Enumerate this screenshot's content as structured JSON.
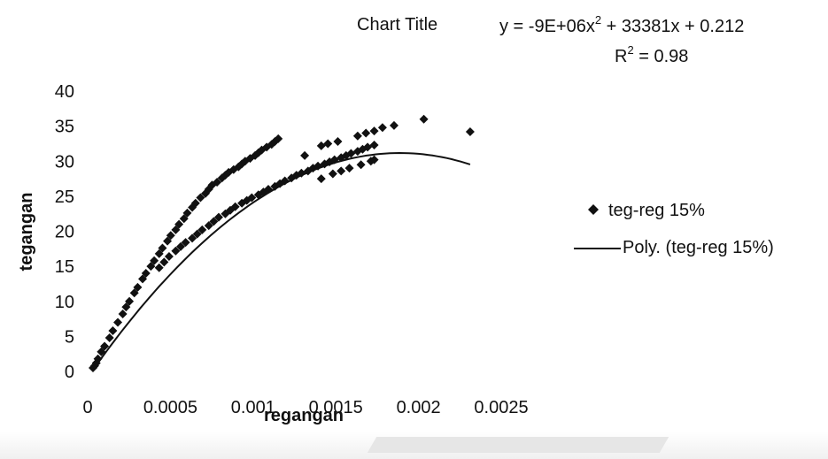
{
  "chart_data": {
    "type": "scatter",
    "title": "Chart Title",
    "equation": "y = -9E+06x",
    "equation_exp": "2",
    "equation_rest": " + 33381x + 0.212",
    "r2_prefix": "R",
    "r2_exp": "2",
    "r2_rest": " = 0.98",
    "xlabel": "regangan",
    "ylabel": "tegangan",
    "xlim": [
      0,
      0.0025
    ],
    "ylim": [
      0,
      40
    ],
    "x_ticks": [
      "0",
      "0.0005",
      "0.001",
      "0.0015",
      "0.002",
      "0.0025"
    ],
    "y_ticks": [
      "0",
      "5",
      "10",
      "15",
      "20",
      "25",
      "30",
      "35",
      "40"
    ],
    "grid": false,
    "legend_position": "right",
    "series": [
      {
        "name": "teg-reg 15%",
        "marker": "diamond",
        "x": [
          0,
          1e-05,
          2e-05,
          3e-05,
          5e-05,
          7e-05,
          0.0001,
          0.00012,
          0.00015,
          0.00018,
          0.0002,
          0.00022,
          0.00025,
          0.00027,
          0.0003,
          0.00032,
          0.00035,
          0.00037,
          0.0004,
          0.00042,
          0.00045,
          0.00047,
          0.0005,
          0.00052,
          0.00055,
          0.00057,
          0.0006,
          0.00062,
          0.00065,
          0.00068,
          0.0007,
          0.00072,
          0.00075,
          0.00078,
          0.0008,
          0.00082,
          0.00085,
          0.00088,
          0.0009,
          0.00092,
          0.00095,
          0.00098,
          0.001,
          0.00102,
          0.00105,
          0.00108,
          0.0011,
          0.00112,
          0.0004,
          0.00043,
          0.00046,
          0.0005,
          0.00053,
          0.00056,
          0.0006,
          0.00063,
          0.00066,
          0.0007,
          0.00073,
          0.00076,
          0.0008,
          0.00083,
          0.00086,
          0.0009,
          0.00093,
          0.00096,
          0.001,
          0.00103,
          0.00106,
          0.0011,
          0.00113,
          0.00116,
          0.0012,
          0.00123,
          0.00126,
          0.0013,
          0.00133,
          0.00136,
          0.0014,
          0.00143,
          0.00146,
          0.0015,
          0.00153,
          0.00156,
          0.0016,
          0.00163,
          0.00166,
          0.0017,
          0.00128,
          0.00138,
          0.00142,
          0.00148,
          0.0016,
          0.00165,
          0.0017,
          0.00175,
          0.00182,
          0.00138,
          0.00145,
          0.0015,
          0.00155,
          0.00162,
          0.00168,
          0.0017,
          0.002,
          0.00228
        ],
        "y": [
          0.5,
          0.8,
          1.2,
          1.8,
          2.8,
          3.6,
          4.8,
          5.8,
          7.0,
          8.2,
          9.2,
          10.0,
          11.2,
          12.0,
          13.2,
          14.0,
          15.0,
          15.8,
          16.8,
          17.6,
          18.6,
          19.4,
          20.2,
          21.0,
          21.8,
          22.6,
          23.4,
          24.0,
          24.8,
          25.4,
          26.0,
          26.6,
          27.0,
          27.6,
          28.0,
          28.4,
          28.8,
          29.2,
          29.6,
          30.0,
          30.4,
          30.8,
          31.2,
          31.6,
          32.0,
          32.4,
          32.8,
          33.2,
          14.8,
          15.6,
          16.4,
          17.2,
          17.8,
          18.4,
          19.0,
          19.6,
          20.2,
          20.8,
          21.4,
          22.0,
          22.5,
          23.0,
          23.5,
          24.0,
          24.4,
          24.8,
          25.2,
          25.6,
          26.0,
          26.4,
          26.8,
          27.2,
          27.6,
          28.0,
          28.3,
          28.6,
          29.0,
          29.3,
          29.6,
          29.9,
          30.2,
          30.5,
          30.8,
          31.1,
          31.4,
          31.7,
          32.0,
          32.3,
          30.8,
          32.2,
          32.5,
          32.8,
          33.6,
          34.0,
          34.3,
          34.8,
          35.1,
          27.5,
          28.2,
          28.6,
          29.0,
          29.5,
          30.0,
          30.2,
          36.0,
          34.2
        ]
      },
      {
        "name": "Poly. (teg-reg 15%)",
        "type": "polynomial",
        "coefficients": {
          "a2": -9000000,
          "a1": 33381,
          "a0": 0.212
        },
        "x_range": [
          0,
          0.00228
        ]
      }
    ]
  }
}
